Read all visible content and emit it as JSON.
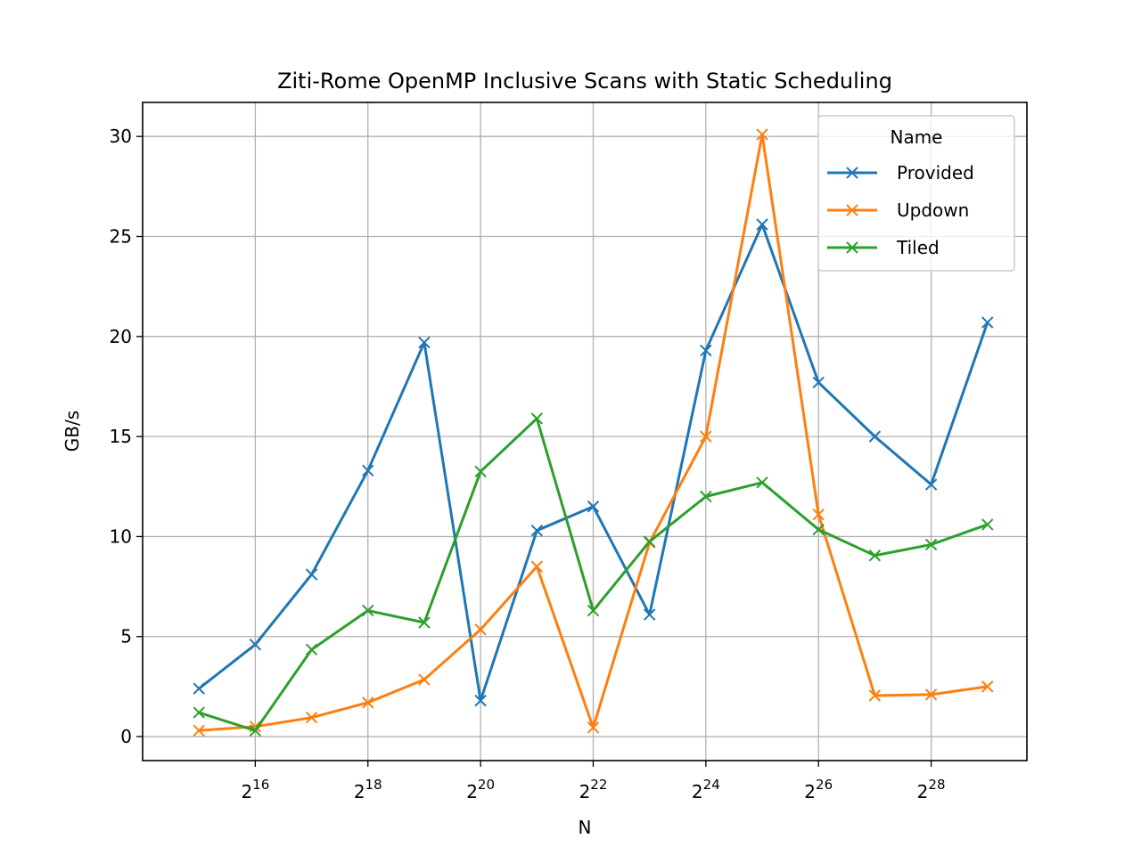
{
  "chart_data": {
    "type": "line",
    "title": "Ziti-Rome OpenMP Inclusive Scans with Static Scheduling",
    "xlabel": "N",
    "ylabel": "GB/s",
    "x_scale": "log2",
    "x_exponents": [
      15,
      16,
      17,
      18,
      19,
      20,
      21,
      22,
      23,
      24,
      25,
      26,
      27,
      28,
      29
    ],
    "x_tick_base": "2",
    "x_ticks": [
      "16",
      "18",
      "20",
      "22",
      "24",
      "26",
      "28"
    ],
    "y_ticks": [
      "0",
      "5",
      "10",
      "15",
      "20",
      "25",
      "30"
    ],
    "xlim_exp": [
      14.0,
      29.7
    ],
    "ylim": [
      -1.2,
      31.7
    ],
    "grid": true,
    "legend": {
      "title": "Name",
      "position": "top-right"
    },
    "series": [
      {
        "name": "Provided",
        "color": "#1f77b4",
        "values": [
          2.4,
          4.6,
          8.1,
          13.3,
          19.7,
          1.8,
          10.3,
          11.5,
          6.1,
          19.3,
          25.6,
          17.7,
          15.0,
          12.6,
          20.7
        ]
      },
      {
        "name": "Updown",
        "color": "#ff7f0e",
        "values": [
          0.3,
          0.5,
          0.95,
          1.7,
          2.85,
          5.35,
          8.5,
          0.45,
          9.7,
          15.0,
          30.1,
          11.1,
          2.05,
          2.1,
          2.5
        ]
      },
      {
        "name": "Tiled",
        "color": "#2ca02c",
        "values": [
          1.2,
          0.3,
          4.35,
          6.3,
          5.7,
          13.25,
          15.9,
          6.3,
          9.75,
          12.0,
          12.7,
          10.35,
          9.05,
          9.6,
          10.6
        ]
      }
    ]
  }
}
